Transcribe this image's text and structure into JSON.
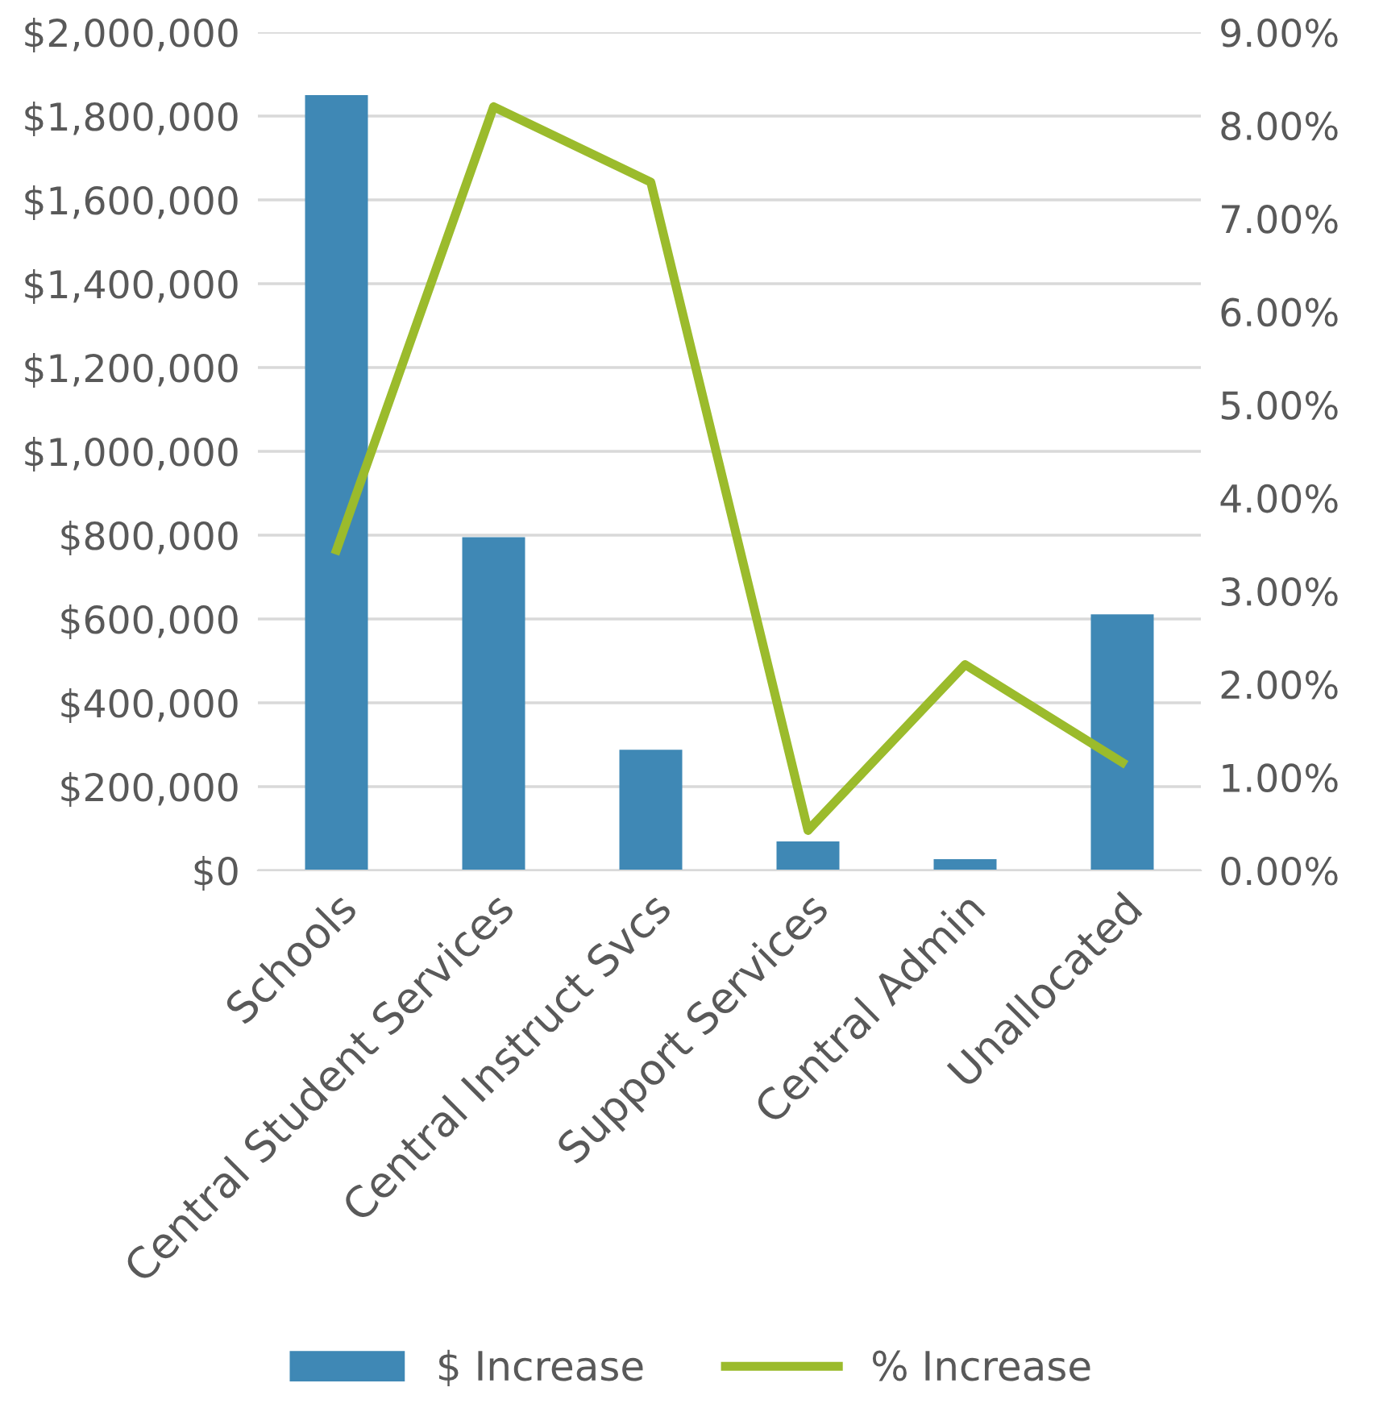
{
  "chart_data": {
    "type": "bar",
    "categories": [
      "Schools",
      "Central Student Services",
      "Central Instruct Svcs",
      "Support Services",
      "Central Admin",
      "Unallocated"
    ],
    "series": [
      {
        "name": "$ Increase",
        "color": "#3f88b5",
        "values": [
          1850000,
          795000,
          288000,
          69000,
          27000,
          611000
        ]
      },
      {
        "name": "% Increase",
        "type": "line",
        "axis": "y2",
        "color": "#9bbb2c",
        "values": [
          3.44,
          8.2,
          7.39,
          0.43,
          2.21,
          1.16
        ]
      }
    ],
    "ylim": [
      0,
      2000000
    ],
    "yticks": [
      {
        "value": 0,
        "label": "$0"
      },
      {
        "value": 200000,
        "label": "$200,000"
      },
      {
        "value": 400000,
        "label": "$400,000"
      },
      {
        "value": 600000,
        "label": "$600,000"
      },
      {
        "value": 800000,
        "label": "$800,000"
      },
      {
        "value": 1000000,
        "label": "$1,000,000"
      },
      {
        "value": 1200000,
        "label": "$1,200,000"
      },
      {
        "value": 1400000,
        "label": "$1,400,000"
      },
      {
        "value": 1600000,
        "label": "$1,600,000"
      },
      {
        "value": 1800000,
        "label": "$1,800,000"
      },
      {
        "value": 2000000,
        "label": "$2,000,000"
      }
    ],
    "y2lim": [
      0,
      9
    ],
    "y2ticks": [
      {
        "value": 0,
        "label": "0.00%"
      },
      {
        "value": 1,
        "label": "1.00%"
      },
      {
        "value": 2,
        "label": "2.00%"
      },
      {
        "value": 3,
        "label": "3.00%"
      },
      {
        "value": 4,
        "label": "4.00%"
      },
      {
        "value": 5,
        "label": "5.00%"
      },
      {
        "value": 6,
        "label": "6.00%"
      },
      {
        "value": 7,
        "label": "7.00%"
      },
      {
        "value": 8,
        "label": "8.00%"
      },
      {
        "value": 9,
        "label": "9.00%"
      }
    ],
    "grid": "y",
    "legend": "bottom",
    "marker": "none",
    "line_style": "solid"
  }
}
